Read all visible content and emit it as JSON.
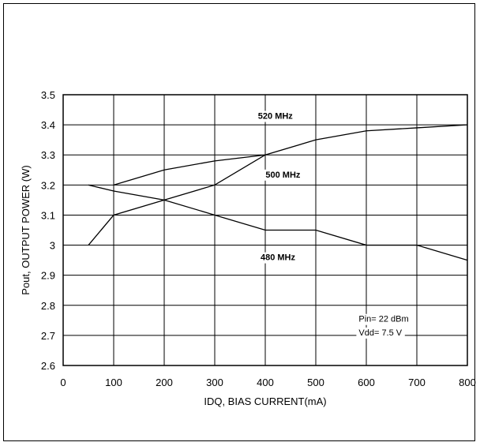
{
  "chart_data": {
    "type": "line",
    "title": "",
    "xlabel": "IDQ, BIAS CURRENT(mA)",
    "ylabel": "Pout, OUTPUT POWER (W)",
    "xlim": [
      0,
      800
    ],
    "ylim": [
      2.6,
      3.5
    ],
    "xticks": [
      0,
      100,
      200,
      300,
      400,
      500,
      600,
      700,
      800
    ],
    "xtick_labels": [
      "0",
      "100",
      "200",
      "300",
      "400",
      "500",
      "600",
      "700",
      "800"
    ],
    "yticks": [
      2.6,
      2.7,
      2.8,
      2.9,
      3.0,
      3.1,
      3.2,
      3.3,
      3.4,
      3.5
    ],
    "ytick_labels": [
      "2.6",
      "2.7",
      "2.8",
      "2.9",
      "3",
      "3.1",
      "3.2",
      "3.3",
      "3.4",
      "3.5"
    ],
    "grid": true,
    "series": [
      {
        "name": "520 MHz",
        "x": [
          50,
          100,
          200,
          300,
          400,
          500,
          600,
          700,
          800
        ],
        "y": [
          3.0,
          3.1,
          3.15,
          3.2,
          3.3,
          3.35,
          3.38,
          3.39,
          3.4
        ]
      },
      {
        "name": "500 MHz",
        "x": [
          100,
          200,
          300,
          400
        ],
        "y": [
          3.2,
          3.25,
          3.28,
          3.3
        ]
      },
      {
        "name": "480 MHz",
        "x": [
          50,
          100,
          200,
          300,
          400,
          500,
          600,
          700,
          800
        ],
        "y": [
          3.2,
          3.18,
          3.15,
          3.1,
          3.05,
          3.05,
          3.0,
          3.0,
          2.95
        ]
      }
    ],
    "annotations": [
      "Pin= 22 dBm",
      "Vdd= 7.5 V"
    ]
  }
}
